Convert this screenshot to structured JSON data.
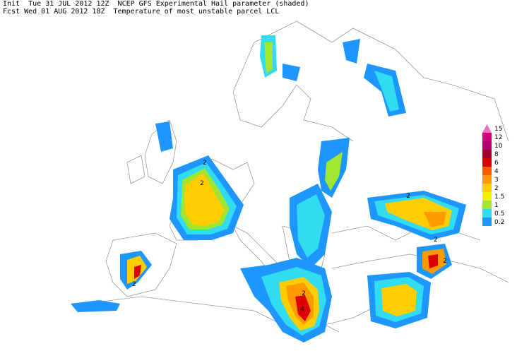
{
  "header": {
    "line1": "Init  Tue 31 JUL 2012 12Z  NCEP GFS Experimental Hail parameter (shaded)",
    "line2": "Fcst Wed 01 AUG 2012 18Z  Temperature of most unstable parcel LCL"
  },
  "legend": [
    {
      "label": "15",
      "color": "#f070c0"
    },
    {
      "label": "12",
      "color": "#d2007a"
    },
    {
      "label": "10",
      "color": "#b4006e"
    },
    {
      "label": "8",
      "color": "#a00030"
    },
    {
      "label": "6",
      "color": "#dc0000"
    },
    {
      "label": "4",
      "color": "#ff5a00"
    },
    {
      "label": "3",
      "color": "#ff9b00"
    },
    {
      "label": "2",
      "color": "#ffcd00"
    },
    {
      "label": "1.5",
      "color": "#f0f000"
    },
    {
      "label": "1",
      "color": "#a0e632"
    },
    {
      "label": "0.5",
      "color": "#32dcf0"
    },
    {
      "label": "0.2",
      "color": "#1e96ff"
    }
  ],
  "contour_labels": [
    "2",
    "2",
    "2",
    "2",
    "2",
    "4",
    "2",
    "2"
  ]
}
